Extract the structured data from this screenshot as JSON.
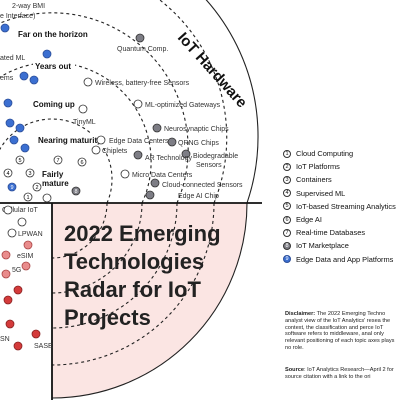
{
  "ring_labels": {
    "far": "Far on the horizon",
    "years": "Years out",
    "coming": "Coming up",
    "nearing": "Nearing maturity",
    "fairly": "Fairly mature"
  },
  "top_cut_labels": {
    "bmi_line1": "2-way BMI",
    "bmi_line2": "e Interface)",
    "ated_ml": "ated ML",
    "ems": "ems"
  },
  "hardware_label": "IoT Hardware",
  "title_lines": [
    "2022 Emerging",
    "Technologies",
    "Radar for IoT",
    "Projects"
  ],
  "techs": [
    {
      "label": "Quantum Comp."
    },
    {
      "label": "Wireless, battery-free Sensors"
    },
    {
      "label": "ML-optimized Gateways"
    },
    {
      "label": "TinyML"
    },
    {
      "label": "Neurosynaptic Chips"
    },
    {
      "label": "Edge Data Centers"
    },
    {
      "label": "QRNG Chips"
    },
    {
      "label": "Chiplets"
    },
    {
      "label": "Biodegradable Sensors"
    },
    {
      "label": "AR Technology"
    },
    {
      "label": "Micro Data Centers"
    },
    {
      "label": "Cloud-connected Sensors"
    },
    {
      "label": "Edge AI Chip"
    }
  ],
  "left_labels": [
    "Cellular IoT",
    "LPWAN",
    "eSIM",
    "5G",
    "SN",
    "SASE"
  ],
  "legend": [
    {
      "num": "1",
      "label": "Cloud Computing",
      "style": "plain"
    },
    {
      "num": "2",
      "label": "IoT Platforms",
      "style": "plain"
    },
    {
      "num": "3",
      "label": "Containers",
      "style": "plain"
    },
    {
      "num": "4",
      "label": "Supervised ML",
      "style": "plain"
    },
    {
      "num": "5",
      "label": "IoT-based Streaming Analytics",
      "style": "plain"
    },
    {
      "num": "6",
      "label": "Edge AI",
      "style": "plain"
    },
    {
      "num": "7",
      "label": "Real-time Databases",
      "style": "plain"
    },
    {
      "num": "8",
      "label": "IoT Marketplace",
      "style": "dark"
    },
    {
      "num": "9",
      "label": "Edge Data and App Platforms",
      "style": "blue"
    }
  ],
  "disclaimer": {
    "lead": "Disclaimer:",
    "text": " The 2022 Emerging Techno analyst view of the IoT Analytics' resea the context, the classification and perce IoT software refers to middleware, anal only relevant positioning of each topic axes plays no role."
  },
  "source": {
    "lead": "Source",
    "text": ": IoT Analytics Research—April 2 for source citation with a link to the ori"
  },
  "colors": {
    "dark_dot": "#7d7d85",
    "blue_dot": "#3b6fd1",
    "pink_dot": "#e98c8c",
    "red_dot": "#d43b3b",
    "quadrant_fill": "#fbe5e3"
  }
}
